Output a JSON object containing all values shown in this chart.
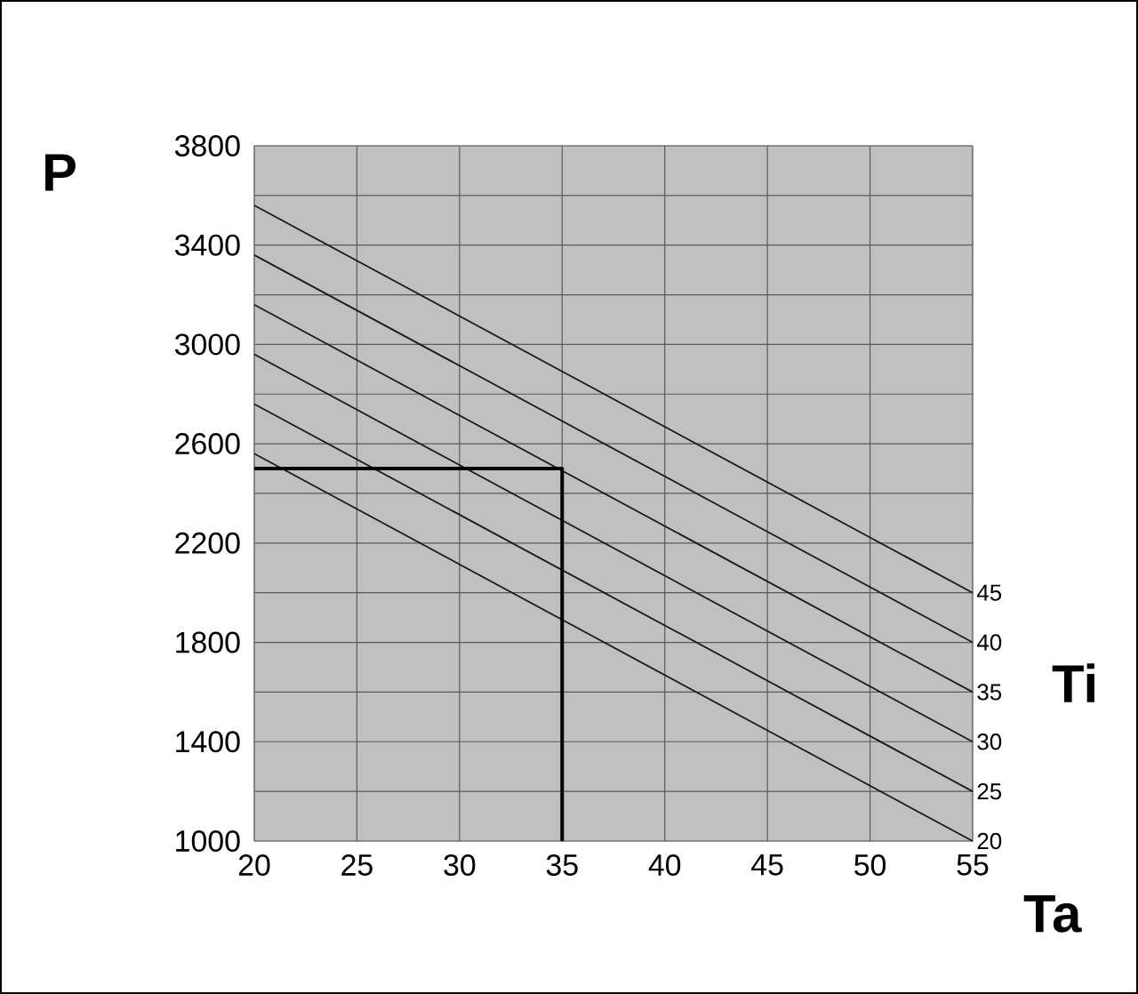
{
  "chart_data": {
    "type": "line",
    "xlabel": "Ta",
    "ylabel": "P",
    "legend_title": "Ti",
    "xlim": [
      20,
      55
    ],
    "xticks": [
      20,
      25,
      30,
      35,
      40,
      45,
      50,
      55
    ],
    "ylim": [
      1000,
      3800
    ],
    "yticks": [
      1000,
      {
        "value": 1200,
        "label": null
      },
      1400,
      {
        "value": 1600,
        "label": null
      },
      1800,
      {
        "value": 2000,
        "label": null
      },
      2200,
      {
        "value": 2400,
        "label": null
      },
      2600,
      {
        "value": 2800,
        "label": null
      },
      3000,
      {
        "value": 3200,
        "label": null
      },
      3400,
      {
        "value": 3600,
        "label": null
      },
      3800
    ],
    "grid": true,
    "marker": "none",
    "line_style": "solid",
    "series": [
      {
        "name": "45",
        "color": "#1a1a1a",
        "x": [
          20,
          55
        ],
        "values": [
          3560,
          2000
        ]
      },
      {
        "name": "40",
        "color": "#1a1a1a",
        "x": [
          20,
          55
        ],
        "values": [
          3360,
          1800
        ]
      },
      {
        "name": "35",
        "color": "#1a1a1a",
        "x": [
          20,
          55
        ],
        "values": [
          3160,
          1600
        ]
      },
      {
        "name": "30",
        "color": "#1a1a1a",
        "x": [
          20,
          55
        ],
        "values": [
          2960,
          1400
        ]
      },
      {
        "name": "25",
        "color": "#1a1a1a",
        "x": [
          20,
          55
        ],
        "values": [
          2760,
          1200
        ]
      },
      {
        "name": "20",
        "color": "#1a1a1a",
        "x": [
          20,
          55
        ],
        "values": [
          2560,
          1000
        ]
      },
      {
        "type": "line",
        "color": "#000000",
        "x": [
          20,
          35,
          35
        ],
        "values": [
          2500,
          2500,
          1000
        ]
      }
    ]
  }
}
